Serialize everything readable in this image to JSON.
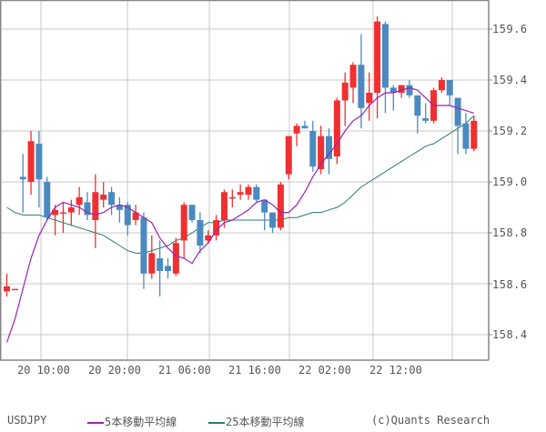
{
  "chart_data": {
    "type": "candlestick",
    "symbol": "USDJPY",
    "ylim": [
      158.33,
      159.69
    ],
    "y_ticks": [
      "159.6",
      "159.4",
      "159.2",
      "159.0",
      "158.8",
      "158.6",
      "158.4"
    ],
    "y_tick_values": [
      159.6,
      159.4,
      159.2,
      159.0,
      158.8,
      158.6,
      158.4
    ],
    "x_ticks": [
      "20 10:00",
      "20 20:00",
      "21 06:00",
      "21 16:00",
      "22 02:00",
      "22 12:00"
    ],
    "x_tick_index": [
      4.5,
      15,
      25,
      35,
      45.5,
      55
    ],
    "grid": true,
    "colors": {
      "up": "#f03030",
      "down": "#4a8abf",
      "ma5": "#9a22b4",
      "ma25": "#2a7a70",
      "grid": "#c8c8c8",
      "frame": "#888888"
    },
    "candles": [
      {
        "o": 158.57,
        "h": 158.64,
        "l": 158.55,
        "c": 158.59
      },
      {
        "o": 158.58,
        "h": 158.58,
        "l": 158.58,
        "c": 158.58
      },
      {
        "o": 159.02,
        "h": 159.11,
        "l": 158.88,
        "c": 159.01
      },
      {
        "o": 159.0,
        "h": 159.2,
        "l": 158.95,
        "c": 159.16
      },
      {
        "o": 159.15,
        "h": 159.2,
        "l": 158.9,
        "c": 159.01
      },
      {
        "o": 159.0,
        "h": 159.02,
        "l": 158.85,
        "c": 158.86
      },
      {
        "o": 158.87,
        "h": 158.91,
        "l": 158.79,
        "c": 158.89
      },
      {
        "o": 158.88,
        "h": 158.92,
        "l": 158.8,
        "c": 158.88
      },
      {
        "o": 158.88,
        "h": 158.93,
        "l": 158.83,
        "c": 158.9
      },
      {
        "o": 158.91,
        "h": 158.98,
        "l": 158.87,
        "c": 158.94
      },
      {
        "o": 158.92,
        "h": 158.96,
        "l": 158.85,
        "c": 158.87
      },
      {
        "o": 158.85,
        "h": 159.03,
        "l": 158.74,
        "c": 158.96
      },
      {
        "o": 158.93,
        "h": 159.0,
        "l": 158.9,
        "c": 158.95
      },
      {
        "o": 158.96,
        "h": 158.98,
        "l": 158.87,
        "c": 158.91
      },
      {
        "o": 158.91,
        "h": 158.94,
        "l": 158.84,
        "c": 158.89
      },
      {
        "o": 158.91,
        "h": 158.92,
        "l": 158.79,
        "c": 158.83
      },
      {
        "o": 158.85,
        "h": 158.91,
        "l": 158.83,
        "c": 158.88
      },
      {
        "o": 158.86,
        "h": 158.88,
        "l": 158.58,
        "c": 158.64
      },
      {
        "o": 158.64,
        "h": 158.79,
        "l": 158.62,
        "c": 158.72
      },
      {
        "o": 158.7,
        "h": 158.77,
        "l": 158.55,
        "c": 158.65
      },
      {
        "o": 158.67,
        "h": 158.7,
        "l": 158.62,
        "c": 158.65
      },
      {
        "o": 158.64,
        "h": 158.78,
        "l": 158.63,
        "c": 158.76
      },
      {
        "o": 158.77,
        "h": 158.92,
        "l": 158.7,
        "c": 158.91
      },
      {
        "o": 158.91,
        "h": 158.91,
        "l": 158.84,
        "c": 158.85
      },
      {
        "o": 158.85,
        "h": 158.88,
        "l": 158.72,
        "c": 158.75
      },
      {
        "o": 158.77,
        "h": 158.81,
        "l": 158.76,
        "c": 158.79
      },
      {
        "o": 158.79,
        "h": 158.87,
        "l": 158.77,
        "c": 158.85
      },
      {
        "o": 158.85,
        "h": 158.97,
        "l": 158.82,
        "c": 158.96
      },
      {
        "o": 158.94,
        "h": 158.97,
        "l": 158.9,
        "c": 158.94
      },
      {
        "o": 158.95,
        "h": 158.99,
        "l": 158.93,
        "c": 158.96
      },
      {
        "o": 158.95,
        "h": 158.99,
        "l": 158.93,
        "c": 158.98
      },
      {
        "o": 158.98,
        "h": 158.99,
        "l": 158.92,
        "c": 158.93
      },
      {
        "o": 158.93,
        "h": 158.93,
        "l": 158.81,
        "c": 158.88
      },
      {
        "o": 158.88,
        "h": 158.88,
        "l": 158.8,
        "c": 158.82
      },
      {
        "o": 158.82,
        "h": 159.0,
        "l": 158.81,
        "c": 158.99
      },
      {
        "o": 159.03,
        "h": 159.18,
        "l": 159.01,
        "c": 159.18
      },
      {
        "o": 159.19,
        "h": 159.23,
        "l": 159.14,
        "c": 159.22
      },
      {
        "o": 159.22,
        "h": 159.24,
        "l": 159.21,
        "c": 159.21
      },
      {
        "o": 159.2,
        "h": 159.24,
        "l": 159.04,
        "c": 159.06
      },
      {
        "o": 159.05,
        "h": 159.22,
        "l": 159.03,
        "c": 159.18
      },
      {
        "o": 159.18,
        "h": 159.21,
        "l": 159.03,
        "c": 159.09
      },
      {
        "o": 159.1,
        "h": 159.33,
        "l": 159.07,
        "c": 159.32
      },
      {
        "o": 159.32,
        "h": 159.43,
        "l": 159.22,
        "c": 159.39
      },
      {
        "o": 159.37,
        "h": 159.47,
        "l": 159.31,
        "c": 159.46
      },
      {
        "o": 159.46,
        "h": 159.58,
        "l": 159.21,
        "c": 159.29
      },
      {
        "o": 159.31,
        "h": 159.43,
        "l": 159.24,
        "c": 159.35
      },
      {
        "o": 159.35,
        "h": 159.65,
        "l": 159.25,
        "c": 159.63
      },
      {
        "o": 159.62,
        "h": 159.63,
        "l": 159.27,
        "c": 159.37
      },
      {
        "o": 159.37,
        "h": 159.38,
        "l": 159.28,
        "c": 159.35
      },
      {
        "o": 159.35,
        "h": 159.38,
        "l": 159.33,
        "c": 159.38
      },
      {
        "o": 159.38,
        "h": 159.4,
        "l": 159.33,
        "c": 159.34
      },
      {
        "o": 159.34,
        "h": 159.34,
        "l": 159.19,
        "c": 159.26
      },
      {
        "o": 159.25,
        "h": 159.31,
        "l": 159.23,
        "c": 159.24
      },
      {
        "o": 159.24,
        "h": 159.37,
        "l": 159.23,
        "c": 159.36
      },
      {
        "o": 159.36,
        "h": 159.41,
        "l": 159.35,
        "c": 159.4
      },
      {
        "o": 159.4,
        "h": 159.4,
        "l": 159.3,
        "c": 159.34
      },
      {
        "o": 159.33,
        "h": 159.33,
        "l": 159.11,
        "c": 159.22
      },
      {
        "o": 159.23,
        "h": 159.27,
        "l": 159.11,
        "c": 159.13
      },
      {
        "o": 159.13,
        "h": 159.26,
        "l": 159.12,
        "c": 159.24
      }
    ],
    "ma5": [
      158.37,
      158.46,
      158.58,
      158.7,
      158.79,
      158.85,
      158.9,
      158.92,
      158.91,
      158.9,
      158.88,
      158.87,
      158.88,
      158.9,
      158.91,
      158.9,
      158.88,
      158.86,
      158.84,
      158.78,
      158.74,
      158.71,
      158.7,
      158.68,
      158.73,
      158.76,
      158.81,
      158.84,
      158.85,
      158.87,
      158.89,
      158.92,
      158.93,
      158.91,
      158.88,
      158.88,
      158.91,
      158.96,
      159.02,
      159.07,
      159.11,
      159.15,
      159.2,
      159.24,
      159.26,
      159.3,
      159.33,
      159.35,
      159.35,
      159.36,
      159.37,
      159.36,
      159.33,
      159.3,
      159.3,
      159.3,
      159.29,
      159.28,
      159.27
    ],
    "ma25": [
      158.9,
      158.88,
      158.87,
      158.87,
      158.87,
      158.86,
      158.85,
      158.84,
      158.83,
      158.82,
      158.81,
      158.8,
      158.79,
      158.77,
      158.75,
      158.73,
      158.72,
      158.72,
      158.73,
      158.74,
      158.75,
      158.77,
      158.78,
      158.8,
      158.82,
      158.84,
      158.84,
      158.85,
      158.85,
      158.85,
      158.85,
      158.85,
      158.85,
      158.85,
      158.85,
      158.86,
      158.86,
      158.87,
      158.88,
      158.88,
      158.89,
      158.9,
      158.92,
      158.95,
      158.98,
      159.0,
      159.02,
      159.04,
      159.06,
      159.08,
      159.1,
      159.12,
      159.14,
      159.15,
      159.17,
      159.19,
      159.21,
      159.23,
      159.26
    ]
  },
  "legend": {
    "symbol": "USDJPY",
    "ma5_label": "5本移動平均線",
    "ma25_label": "25本移動平均線",
    "credit": "(c)Quants Research"
  },
  "axis": {
    "y_labels": [
      "159.6",
      "159.4",
      "159.2",
      "159.0",
      "158.8",
      "158.6",
      "158.4"
    ],
    "x_labels": [
      "20 10:00",
      "20 20:00",
      "21 06:00",
      "21 16:00",
      "22 02:00",
      "22 12:00"
    ]
  }
}
